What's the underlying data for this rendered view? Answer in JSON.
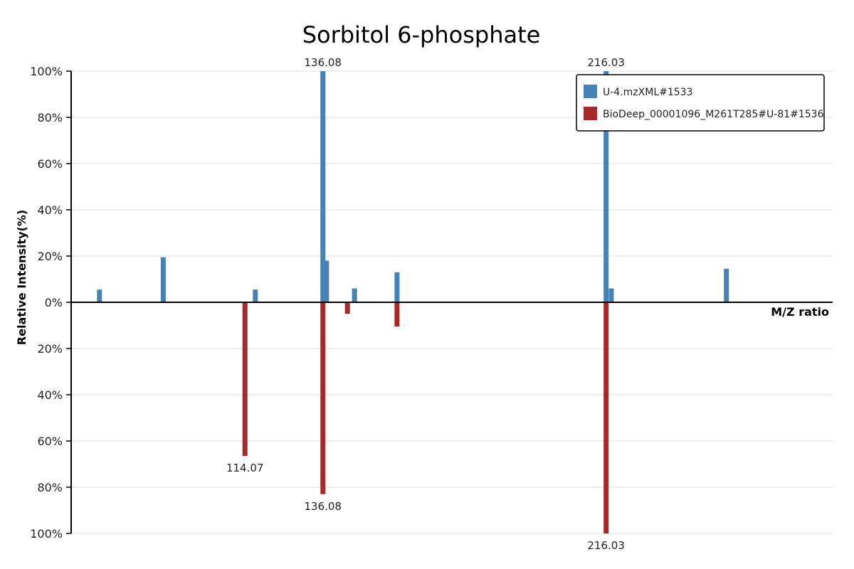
{
  "chart_data": {
    "type": "bar",
    "title": "Sorbitol 6-phosphate",
    "xlabel": "M/Z ratio",
    "ylabel": "Relative Intensity(%)",
    "xlim": [
      65,
      280
    ],
    "ylim_top": [
      0,
      100
    ],
    "ylim_bottom": [
      0,
      100
    ],
    "y_ticks_top": [
      "0%",
      "20%",
      "40%",
      "60%",
      "80%",
      "100%"
    ],
    "y_ticks_bottom": [
      "20%",
      "40%",
      "60%",
      "80%",
      "100%"
    ],
    "grid": true,
    "legend_position": "top-right",
    "series": [
      {
        "name": "U-4.mzXML#1533",
        "color": "#4682b4",
        "direction": "up",
        "x": [
          73.0,
          91.0,
          117.0,
          136.08,
          137.1,
          145.0,
          157.0,
          216.03,
          217.5,
          250.0
        ],
        "values": [
          5.5,
          19.5,
          5.5,
          100,
          18,
          6,
          13,
          100,
          6,
          14.5
        ]
      },
      {
        "name": "BioDeep_00001096_M261T285#U-81#1536",
        "color": "#a52a2a",
        "direction": "down",
        "x": [
          114.07,
          136.08,
          143.0,
          157.0,
          216.03
        ],
        "values": [
          66.5,
          83,
          5,
          10.5,
          100
        ]
      }
    ],
    "peak_labels": [
      {
        "series": 0,
        "x": 136.08,
        "text": "136.08"
      },
      {
        "series": 0,
        "x": 216.03,
        "text": "216.03"
      },
      {
        "series": 1,
        "x": 114.07,
        "text": "114.07"
      },
      {
        "series": 1,
        "x": 136.08,
        "text": "136.08"
      },
      {
        "series": 1,
        "x": 216.03,
        "text": "216.03"
      }
    ]
  }
}
